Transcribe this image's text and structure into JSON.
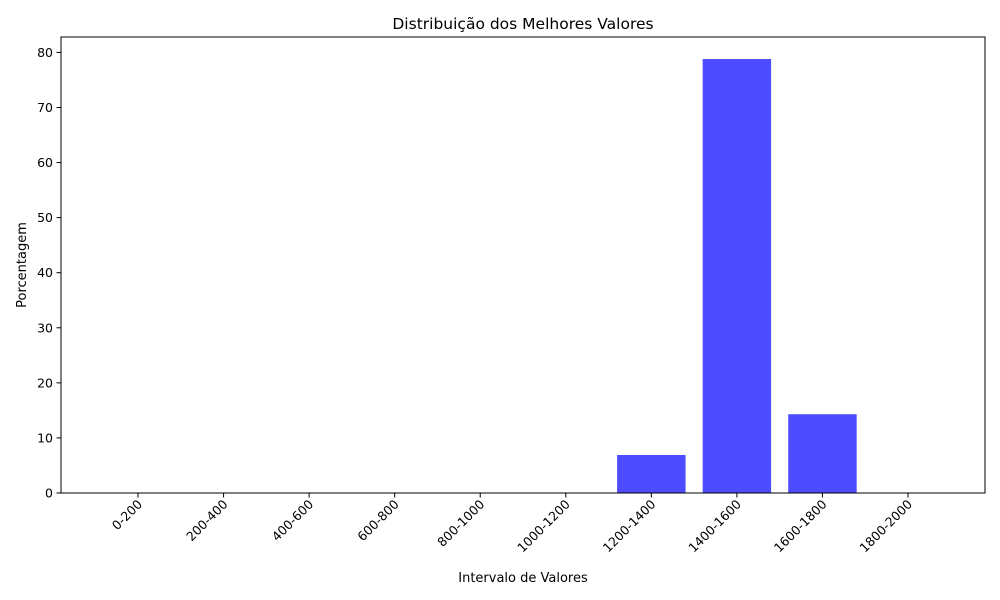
{
  "chart_data": {
    "type": "bar",
    "title": "Distribuição dos Melhores Valores",
    "xlabel": "Intervalo de Valores",
    "ylabel": "Porcentagem",
    "categories": [
      "0-200",
      "200-400",
      "400-600",
      "600-800",
      "800-1000",
      "1000-1200",
      "1200-1400",
      "1400-1600",
      "1600-1800",
      "1800-2000"
    ],
    "values": [
      0,
      0,
      0,
      0,
      0,
      0,
      6.9,
      78.8,
      14.3,
      0
    ],
    "ylim": [
      0,
      82.8
    ],
    "yticks": [
      0,
      10,
      20,
      30,
      40,
      50,
      60,
      70,
      80
    ],
    "grid": false,
    "bar_color": "#4d4dff"
  }
}
